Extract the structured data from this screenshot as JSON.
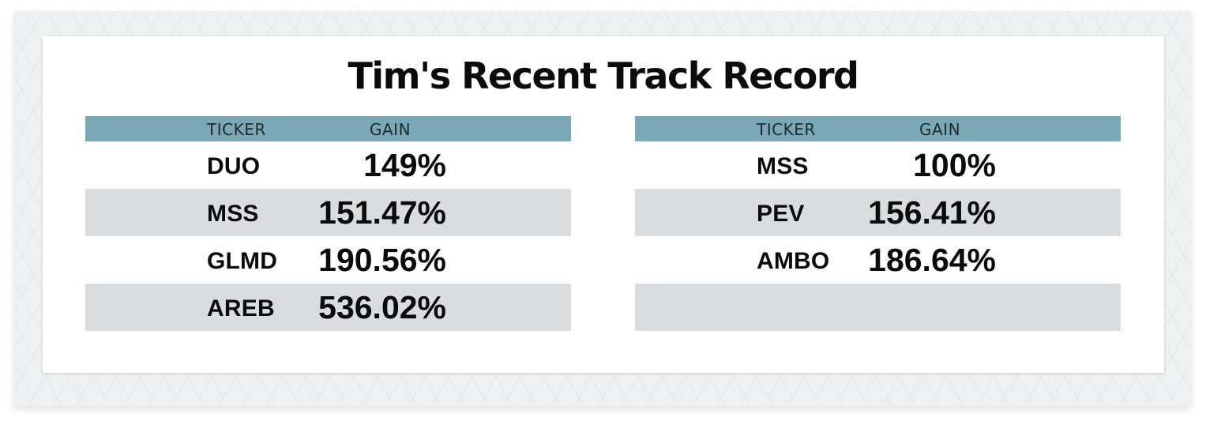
{
  "title": "Tim's Recent Track Record",
  "tables": [
    {
      "headers": {
        "ticker": "TICKER",
        "gain": "GAIN"
      },
      "rows": [
        {
          "ticker": "DUO",
          "gain": "149%"
        },
        {
          "ticker": "MSS",
          "gain": "151.47%"
        },
        {
          "ticker": "GLMD",
          "gain": "190.56%"
        },
        {
          "ticker": "AREB",
          "gain": "536.02%"
        }
      ]
    },
    {
      "headers": {
        "ticker": "TICKER",
        "gain": "GAIN"
      },
      "rows": [
        {
          "ticker": "MSS",
          "gain": "100%"
        },
        {
          "ticker": "PEV",
          "gain": "156.41%"
        },
        {
          "ticker": "AMBO",
          "gain": "186.64%"
        },
        {
          "ticker": "",
          "gain": ""
        }
      ]
    }
  ],
  "colors": {
    "header_band": "#7aa8b6",
    "row_shade": "#d9dddf",
    "text": "#0b0b0b"
  }
}
